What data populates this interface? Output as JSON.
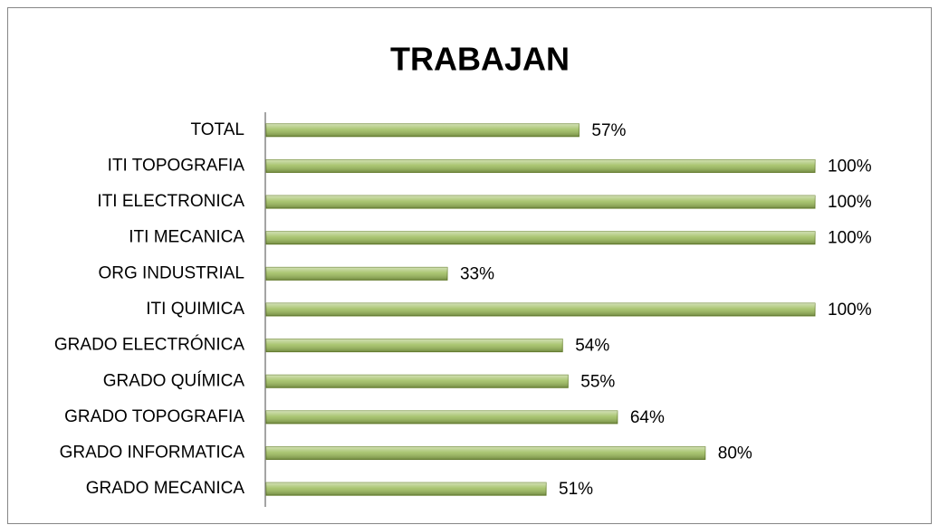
{
  "chart_data": {
    "type": "bar",
    "orientation": "horizontal",
    "title": "TRABAJAN",
    "categories": [
      "TOTAL",
      "ITI TOPOGRAFIA",
      "ITI ELECTRONICA",
      "ITI MECANICA",
      "ORG INDUSTRIAL",
      "ITI QUIMICA",
      "GRADO ELECTRÓNICA",
      "GRADO QUÍMICA",
      "GRADO TOPOGRAFIA",
      "GRADO INFORMATICA",
      "GRADO MECANICA"
    ],
    "values": [
      57,
      100,
      100,
      100,
      33,
      100,
      54,
      55,
      64,
      80,
      51
    ],
    "value_labels": [
      "57%",
      "100%",
      "100%",
      "100%",
      "33%",
      "100%",
      "54%",
      "55%",
      "64%",
      "80%",
      "51%"
    ],
    "color": "#9bbb59",
    "xlim": [
      0,
      100
    ]
  }
}
